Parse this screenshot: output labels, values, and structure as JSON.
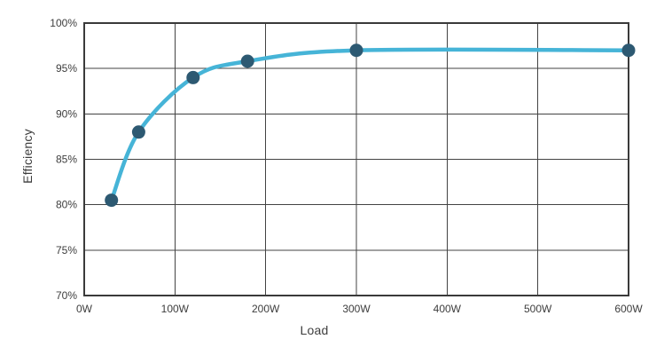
{
  "chart_data": {
    "type": "line",
    "xlabel": "Load",
    "ylabel": "Efficiency",
    "x": [
      30,
      60,
      120,
      180,
      300,
      600
    ],
    "values": [
      80.5,
      88,
      94,
      95.8,
      97,
      97
    ],
    "xlim": [
      0,
      600
    ],
    "ylim": [
      70,
      100
    ],
    "x_tick_values": [
      0,
      100,
      200,
      300,
      400,
      500,
      600
    ],
    "x_ticks": [
      "0W",
      "100W",
      "200W",
      "300W",
      "400W",
      "500W",
      "600W"
    ],
    "y_tick_values": [
      70,
      75,
      80,
      85,
      90,
      95,
      100
    ],
    "y_ticks": [
      "70%",
      "75%",
      "80%",
      "85%",
      "90%",
      "95%",
      "100%"
    ],
    "grid": true,
    "legend": false,
    "colors": {
      "line": "#46b4d7",
      "point": "#2d5972",
      "grid": "#434343",
      "frame": "#3a3a3a",
      "text": "#3d3d3d",
      "background": "#ffffff"
    }
  }
}
